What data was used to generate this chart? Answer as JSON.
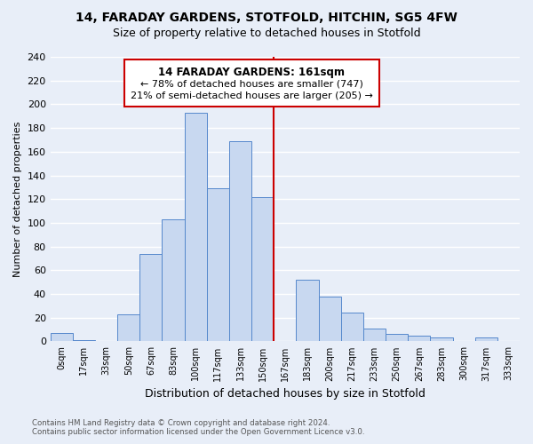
{
  "title": "14, FARADAY GARDENS, STOTFOLD, HITCHIN, SG5 4FW",
  "subtitle": "Size of property relative to detached houses in Stotfold",
  "xlabel": "Distribution of detached houses by size in Stotfold",
  "ylabel": "Number of detached properties",
  "bin_labels": [
    "0sqm",
    "17sqm",
    "33sqm",
    "50sqm",
    "67sqm",
    "83sqm",
    "100sqm",
    "117sqm",
    "133sqm",
    "150sqm",
    "167sqm",
    "183sqm",
    "200sqm",
    "217sqm",
    "233sqm",
    "250sqm",
    "267sqm",
    "283sqm",
    "300sqm",
    "317sqm",
    "333sqm"
  ],
  "bar_values": [
    7,
    1,
    0,
    23,
    74,
    103,
    193,
    129,
    169,
    122,
    0,
    52,
    38,
    24,
    11,
    6,
    5,
    3,
    0,
    3,
    0
  ],
  "bar_color": "#c8d8f0",
  "bar_edge_color": "#5588cc",
  "vline_color": "#cc0000",
  "annotation_title": "14 FARADAY GARDENS: 161sqm",
  "annotation_line1": "← 78% of detached houses are smaller (747)",
  "annotation_line2": "21% of semi-detached houses are larger (205) →",
  "annotation_box_color": "#ffffff",
  "annotation_box_edge": "#cc0000",
  "ylim": [
    0,
    240
  ],
  "yticks": [
    0,
    20,
    40,
    60,
    80,
    100,
    120,
    140,
    160,
    180,
    200,
    220,
    240
  ],
  "footer_line1": "Contains HM Land Registry data © Crown copyright and database right 2024.",
  "footer_line2": "Contains public sector information licensed under the Open Government Licence v3.0.",
  "background_color": "#e8eef8",
  "grid_color": "#ffffff"
}
